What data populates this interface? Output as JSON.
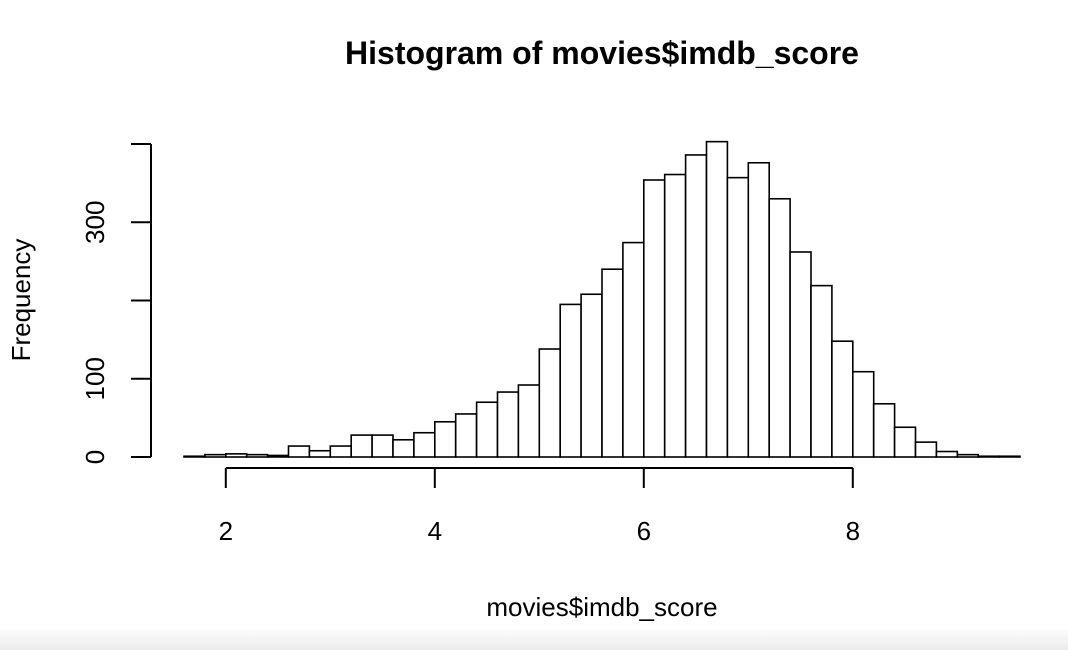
{
  "chart_data": {
    "type": "bar",
    "title": "Histogram of movies$imdb_score",
    "xlabel": "movies$imdb_score",
    "ylabel": "Frequency",
    "bin_width": 0.2,
    "bin_starts": [
      1.6,
      1.8,
      2.0,
      2.2,
      2.4,
      2.6,
      2.8,
      3.0,
      3.2,
      3.4,
      3.6,
      3.8,
      4.0,
      4.2,
      4.4,
      4.6,
      4.8,
      5.0,
      5.2,
      5.4,
      5.6,
      5.8,
      6.0,
      6.2,
      6.4,
      6.6,
      6.8,
      7.0,
      7.2,
      7.4,
      7.6,
      7.8,
      8.0,
      8.2,
      8.4,
      8.6,
      8.8,
      9.0,
      9.2,
      9.4
    ],
    "values": [
      1,
      3,
      4,
      3,
      2,
      14,
      8,
      14,
      28,
      28,
      22,
      31,
      45,
      55,
      70,
      83,
      92,
      138,
      195,
      208,
      240,
      274,
      354,
      361,
      386,
      403,
      357,
      376,
      330,
      262,
      219,
      148,
      109,
      68,
      38,
      19,
      7,
      3,
      1,
      1
    ],
    "xlim": [
      1.6,
      9.6
    ],
    "ylim": [
      0,
      403
    ],
    "x_ticks": [
      2,
      4,
      6,
      8
    ],
    "x_tick_labels": [
      "2",
      "4",
      "6",
      "8"
    ],
    "y_ticks": [
      0,
      100,
      200,
      300,
      400
    ],
    "y_tick_labels": [
      "0",
      "100",
      "",
      "300",
      ""
    ],
    "grid": false,
    "bar_fill": "#ffffff",
    "bar_stroke": "#000000"
  }
}
